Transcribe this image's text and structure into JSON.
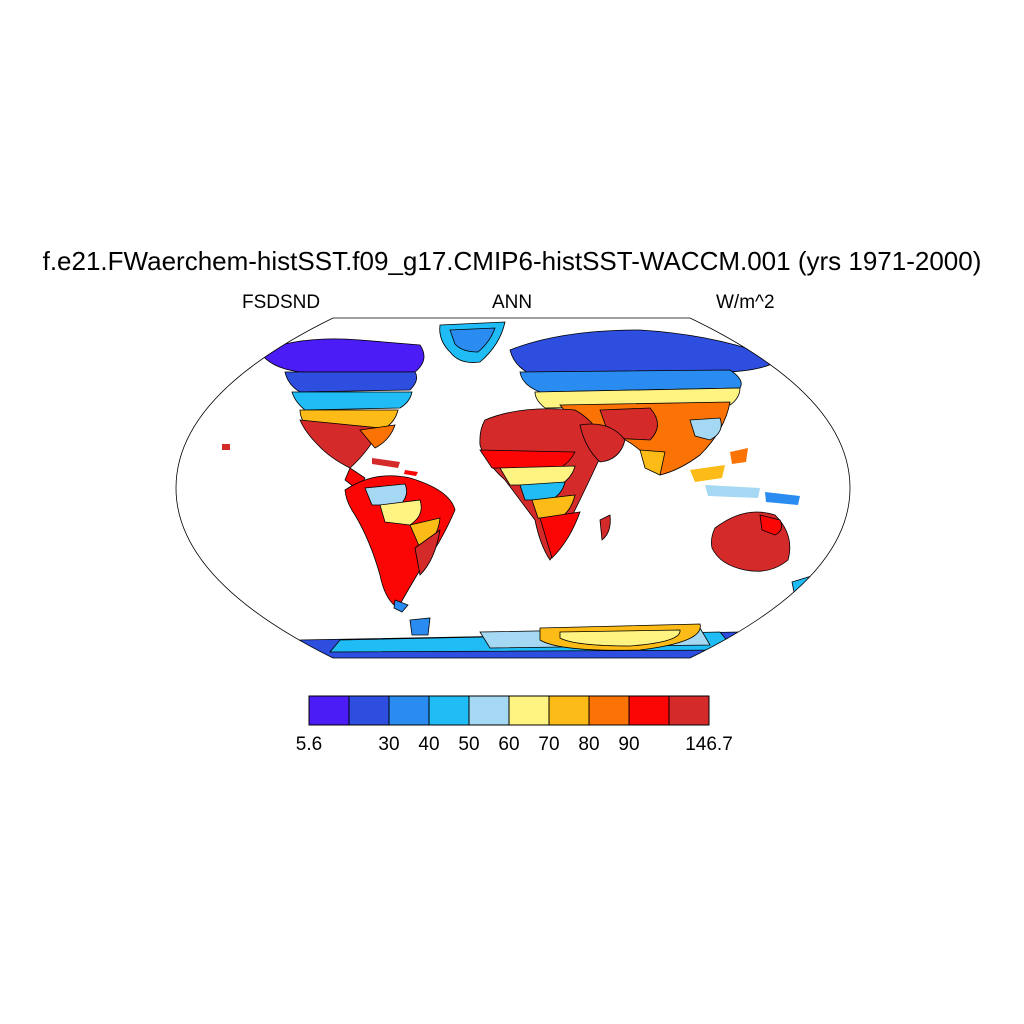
{
  "header": {
    "title": "f.e21.FWaerchem-histSST.f09_g17.CMIP6-histSST-WACCM.001 (yrs 1971-2000)",
    "left_label": "FSDSND",
    "center_label": "ANN",
    "right_label": "W/m^2"
  },
  "colorbar": {
    "colors": [
      "#4b1cf5",
      "#2e4ee0",
      "#2a8cf0",
      "#1fbcf5",
      "#a5d8f2",
      "#fff382",
      "#fcbb16",
      "#fc7305",
      "#fc0505",
      "#d42a2a"
    ],
    "labels": [
      {
        "text": "5.6",
        "edge": 0
      },
      {
        "text": "30",
        "edge": 2
      },
      {
        "text": "40",
        "edge": 3
      },
      {
        "text": "50",
        "edge": 4
      },
      {
        "text": "60",
        "edge": 5
      },
      {
        "text": "70",
        "edge": 6
      },
      {
        "text": "80",
        "edge": 7
      },
      {
        "text": "90",
        "edge": 8
      },
      {
        "text": "146.7",
        "edge": 10
      }
    ]
  }
}
